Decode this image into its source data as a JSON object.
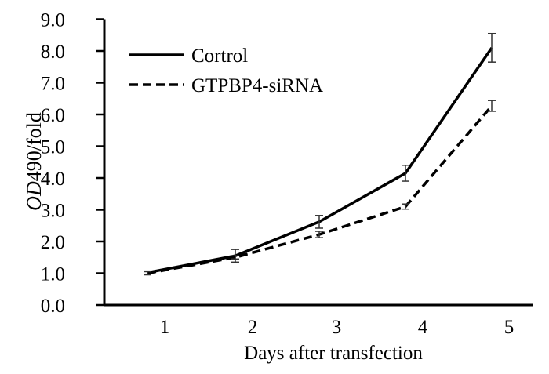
{
  "chart_data": {
    "type": "line",
    "title": "",
    "xlabel": "Days after transfection",
    "ylabel_italic": "OD",
    "ylabel_rest": "490/fold",
    "categories": [
      "1",
      "2",
      "3",
      "4",
      "5"
    ],
    "ylim": [
      0,
      9.0
    ],
    "yticks": [
      "0.0",
      "1.0",
      "2.0",
      "3.0",
      "4.0",
      "5.0",
      "6.0",
      "7.0",
      "8.0",
      "9.0"
    ],
    "grid": false,
    "legend_position": "top-left",
    "series": [
      {
        "name": "Cortrol",
        "style": "solid",
        "color": "#000000",
        "values": [
          1.02,
          1.55,
          2.62,
          4.15,
          8.1
        ],
        "errors": [
          0.05,
          0.2,
          0.2,
          0.25,
          0.45
        ]
      },
      {
        "name": "GTPBP4-siRNA",
        "style": "dashed",
        "color": "#000000",
        "values": [
          1.0,
          1.5,
          2.22,
          3.1,
          6.27
        ],
        "errors": [
          0.05,
          0.05,
          0.1,
          0.08,
          0.17
        ]
      }
    ]
  }
}
